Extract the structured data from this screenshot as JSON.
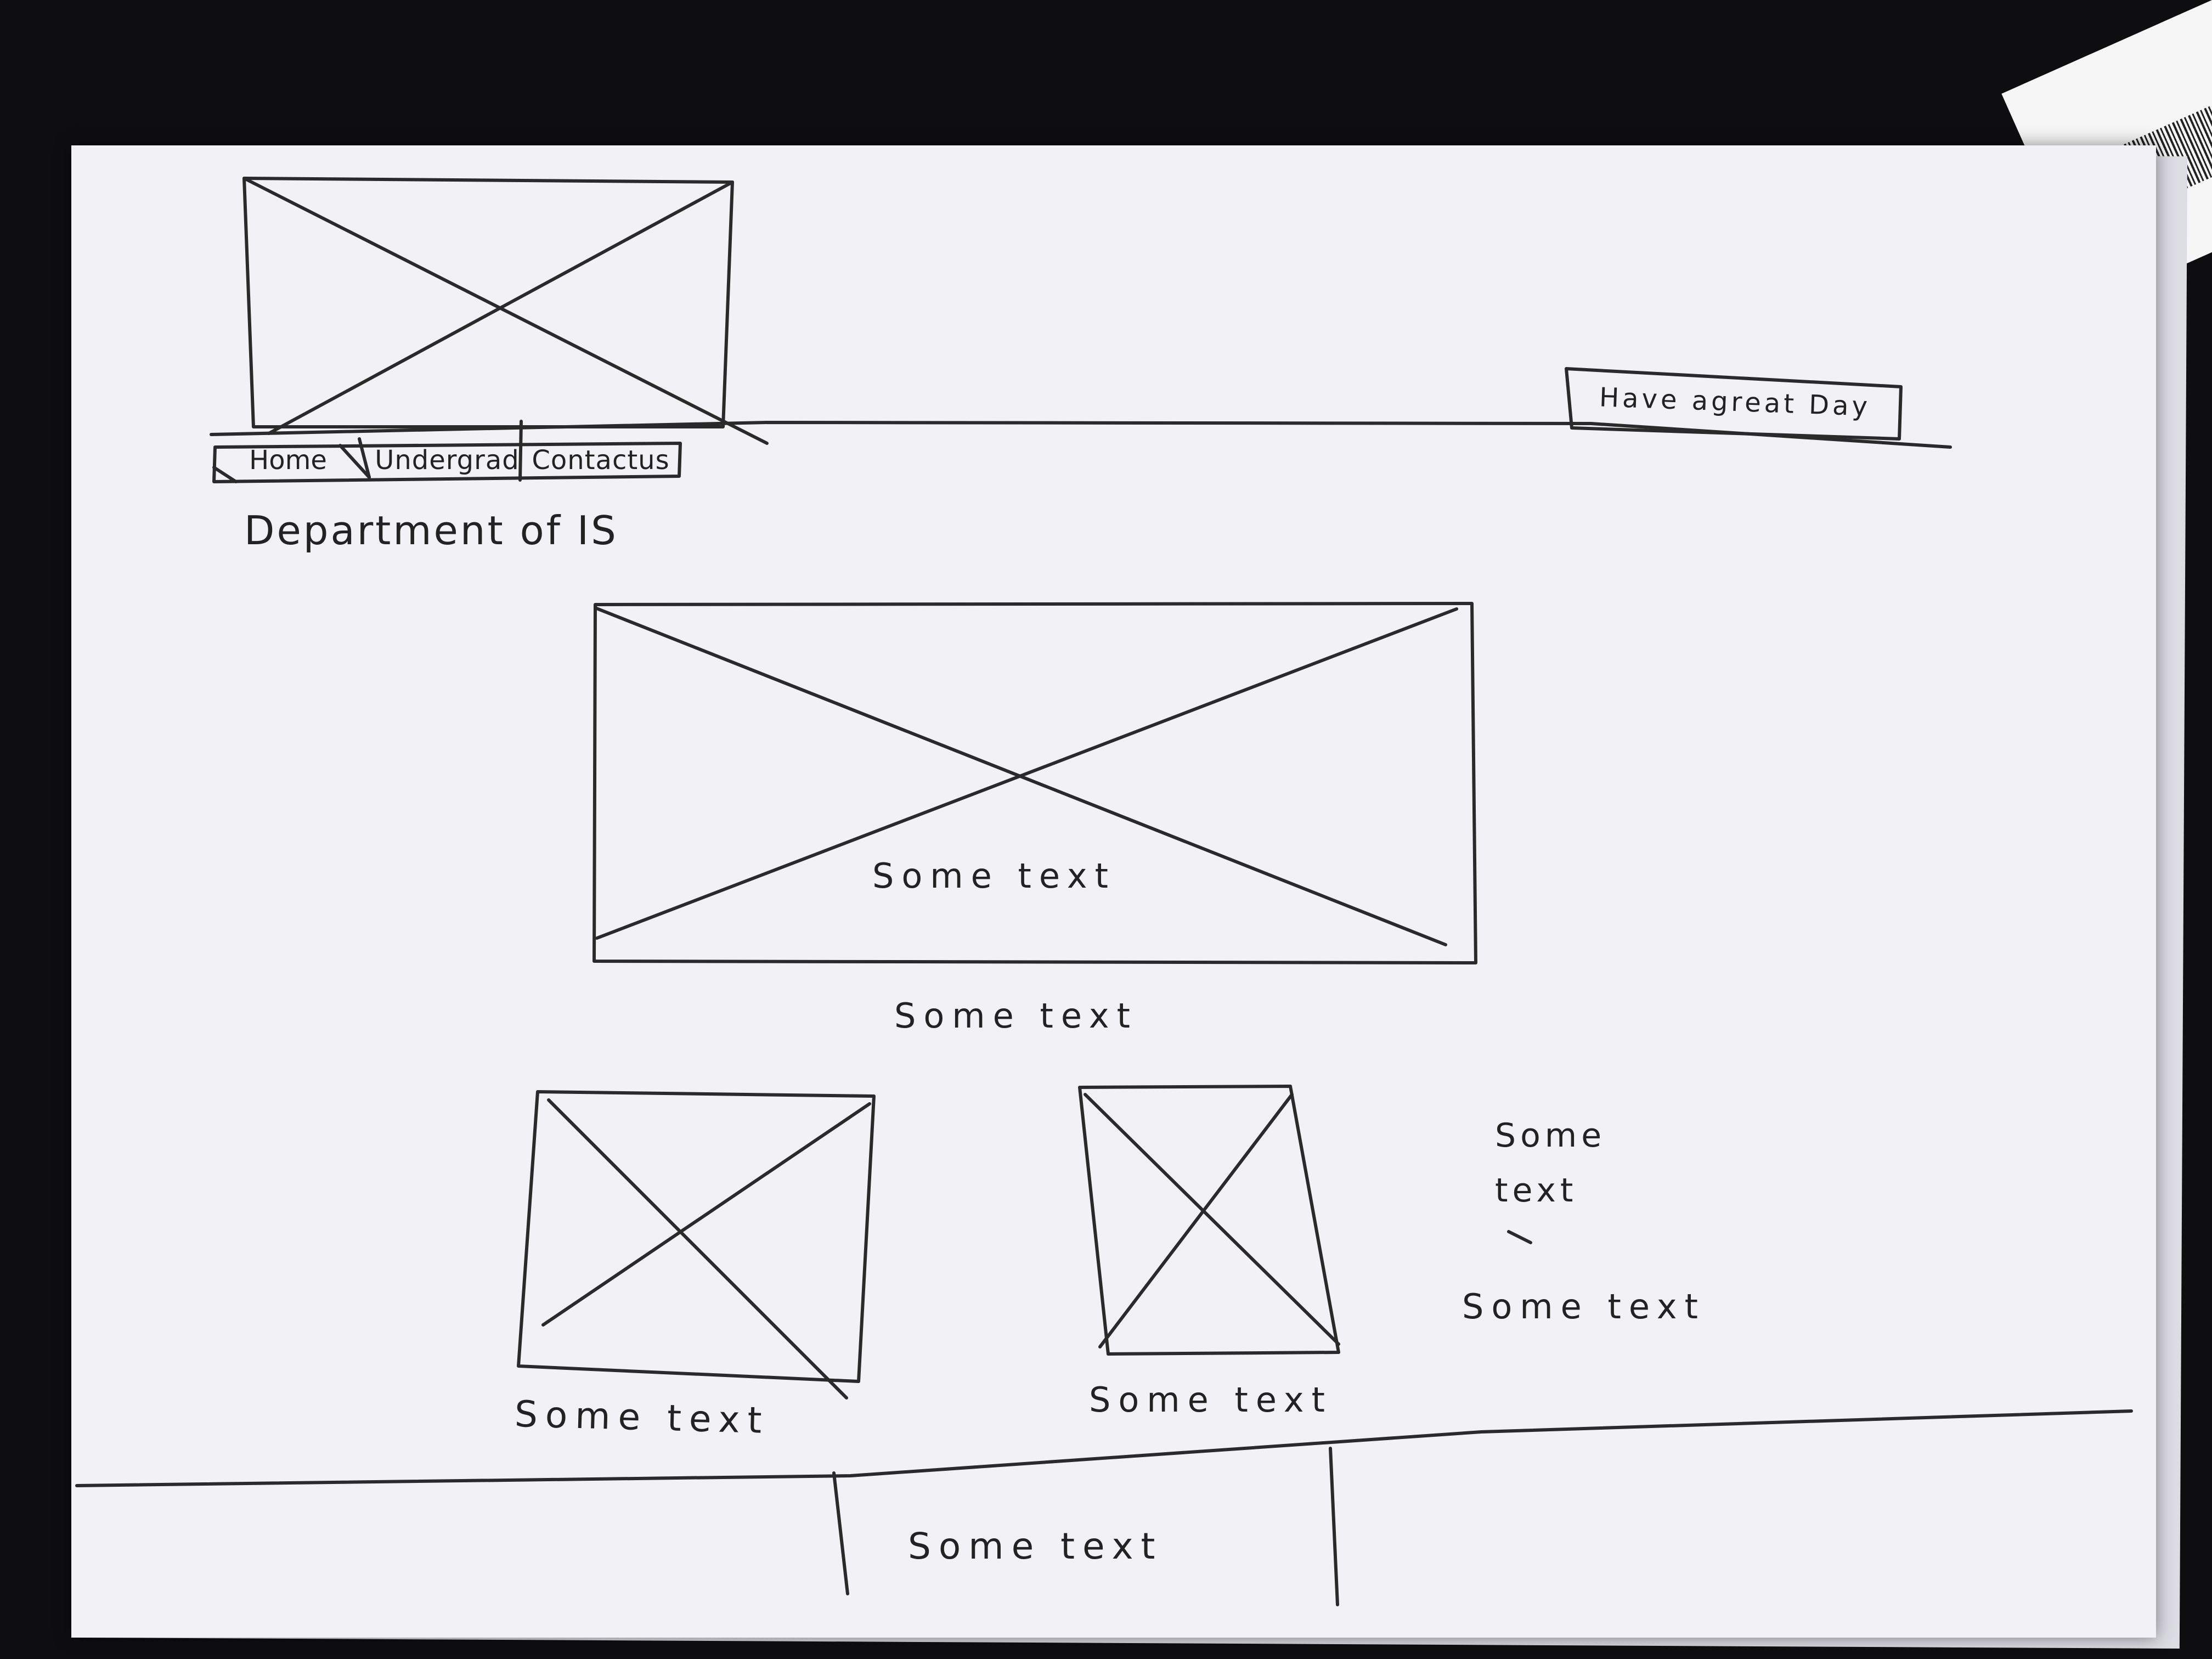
{
  "header": {
    "greeting": "Have agreat Day"
  },
  "nav": {
    "items": [
      {
        "label": "Home"
      },
      {
        "label": "Undergrad"
      },
      {
        "label": "Contactus"
      }
    ]
  },
  "page": {
    "title": "Department of IS"
  },
  "hero": {
    "caption_inside": "Some text",
    "caption_below": "Some text"
  },
  "cards": [
    {
      "caption": "Some text"
    },
    {
      "caption": "Some text"
    }
  ],
  "aside": {
    "text_1": "Some text",
    "text_2": "Some text"
  },
  "footer": {
    "text": "Some text"
  }
}
